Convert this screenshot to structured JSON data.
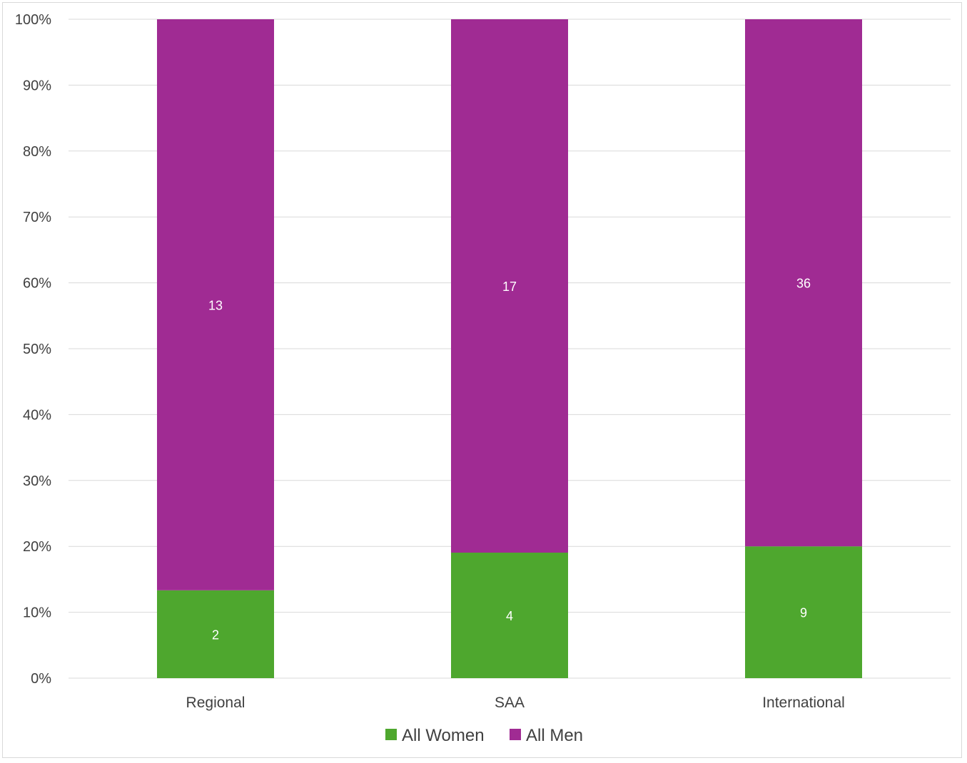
{
  "chart_data": {
    "type": "bar",
    "stacked": "percent",
    "categories": [
      "Regional",
      "SAA",
      "International"
    ],
    "series": [
      {
        "name": "All Women",
        "values": [
          2,
          4,
          9
        ],
        "color": "#4ea72e"
      },
      {
        "name": "All Men",
        "values": [
          13,
          17,
          36
        ],
        "color": "#a02b93"
      }
    ],
    "ylim": [
      0,
      100
    ],
    "y_ticks": [
      "0%",
      "10%",
      "20%",
      "30%",
      "40%",
      "50%",
      "60%",
      "70%",
      "80%",
      "90%",
      "100%"
    ],
    "grid": true,
    "legend_position": "bottom",
    "data_labels": true
  }
}
